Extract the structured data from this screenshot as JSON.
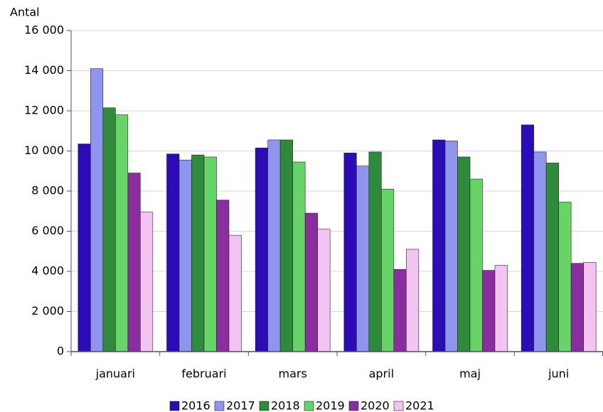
{
  "chart_data": {
    "type": "bar",
    "y_label": "Antal",
    "categories": [
      "januari",
      "februari",
      "mars",
      "april",
      "maj",
      "juni"
    ],
    "series": [
      {
        "name": "2016",
        "color": "#2b0cb8",
        "values": [
          10350,
          9850,
          10150,
          9900,
          10550,
          11300
        ]
      },
      {
        "name": "2017",
        "color": "#8f95ec",
        "values": [
          14100,
          9550,
          10550,
          9250,
          10500,
          9950
        ]
      },
      {
        "name": "2018",
        "color": "#2e8b3a",
        "values": [
          12150,
          9800,
          10550,
          9950,
          9700,
          9400
        ]
      },
      {
        "name": "2019",
        "color": "#66d466",
        "values": [
          11800,
          9700,
          9450,
          8100,
          8600,
          7450
        ]
      },
      {
        "name": "2020",
        "color": "#8b2d9e",
        "values": [
          8900,
          7550,
          6900,
          4100,
          4050,
          4400
        ]
      },
      {
        "name": "2021",
        "color": "#f3c4f1",
        "values": [
          6950,
          5800,
          6100,
          5100,
          4300,
          4450
        ]
      }
    ],
    "ylim": [
      0,
      16000
    ],
    "yticks": [
      0,
      {
        "value": 2000,
        "label": "2 000"
      },
      {
        "value": 4000,
        "label": "4 000"
      },
      {
        "value": 6000,
        "label": "6 000"
      },
      {
        "value": 8000,
        "label": "8 000"
      },
      {
        "value": 10000,
        "label": "10 000"
      },
      {
        "value": 12000,
        "label": "12 000"
      },
      {
        "value": 14000,
        "label": "14 000"
      },
      {
        "value": 16000,
        "label": "16 000"
      }
    ],
    "grid": true,
    "legend": "bottom"
  }
}
